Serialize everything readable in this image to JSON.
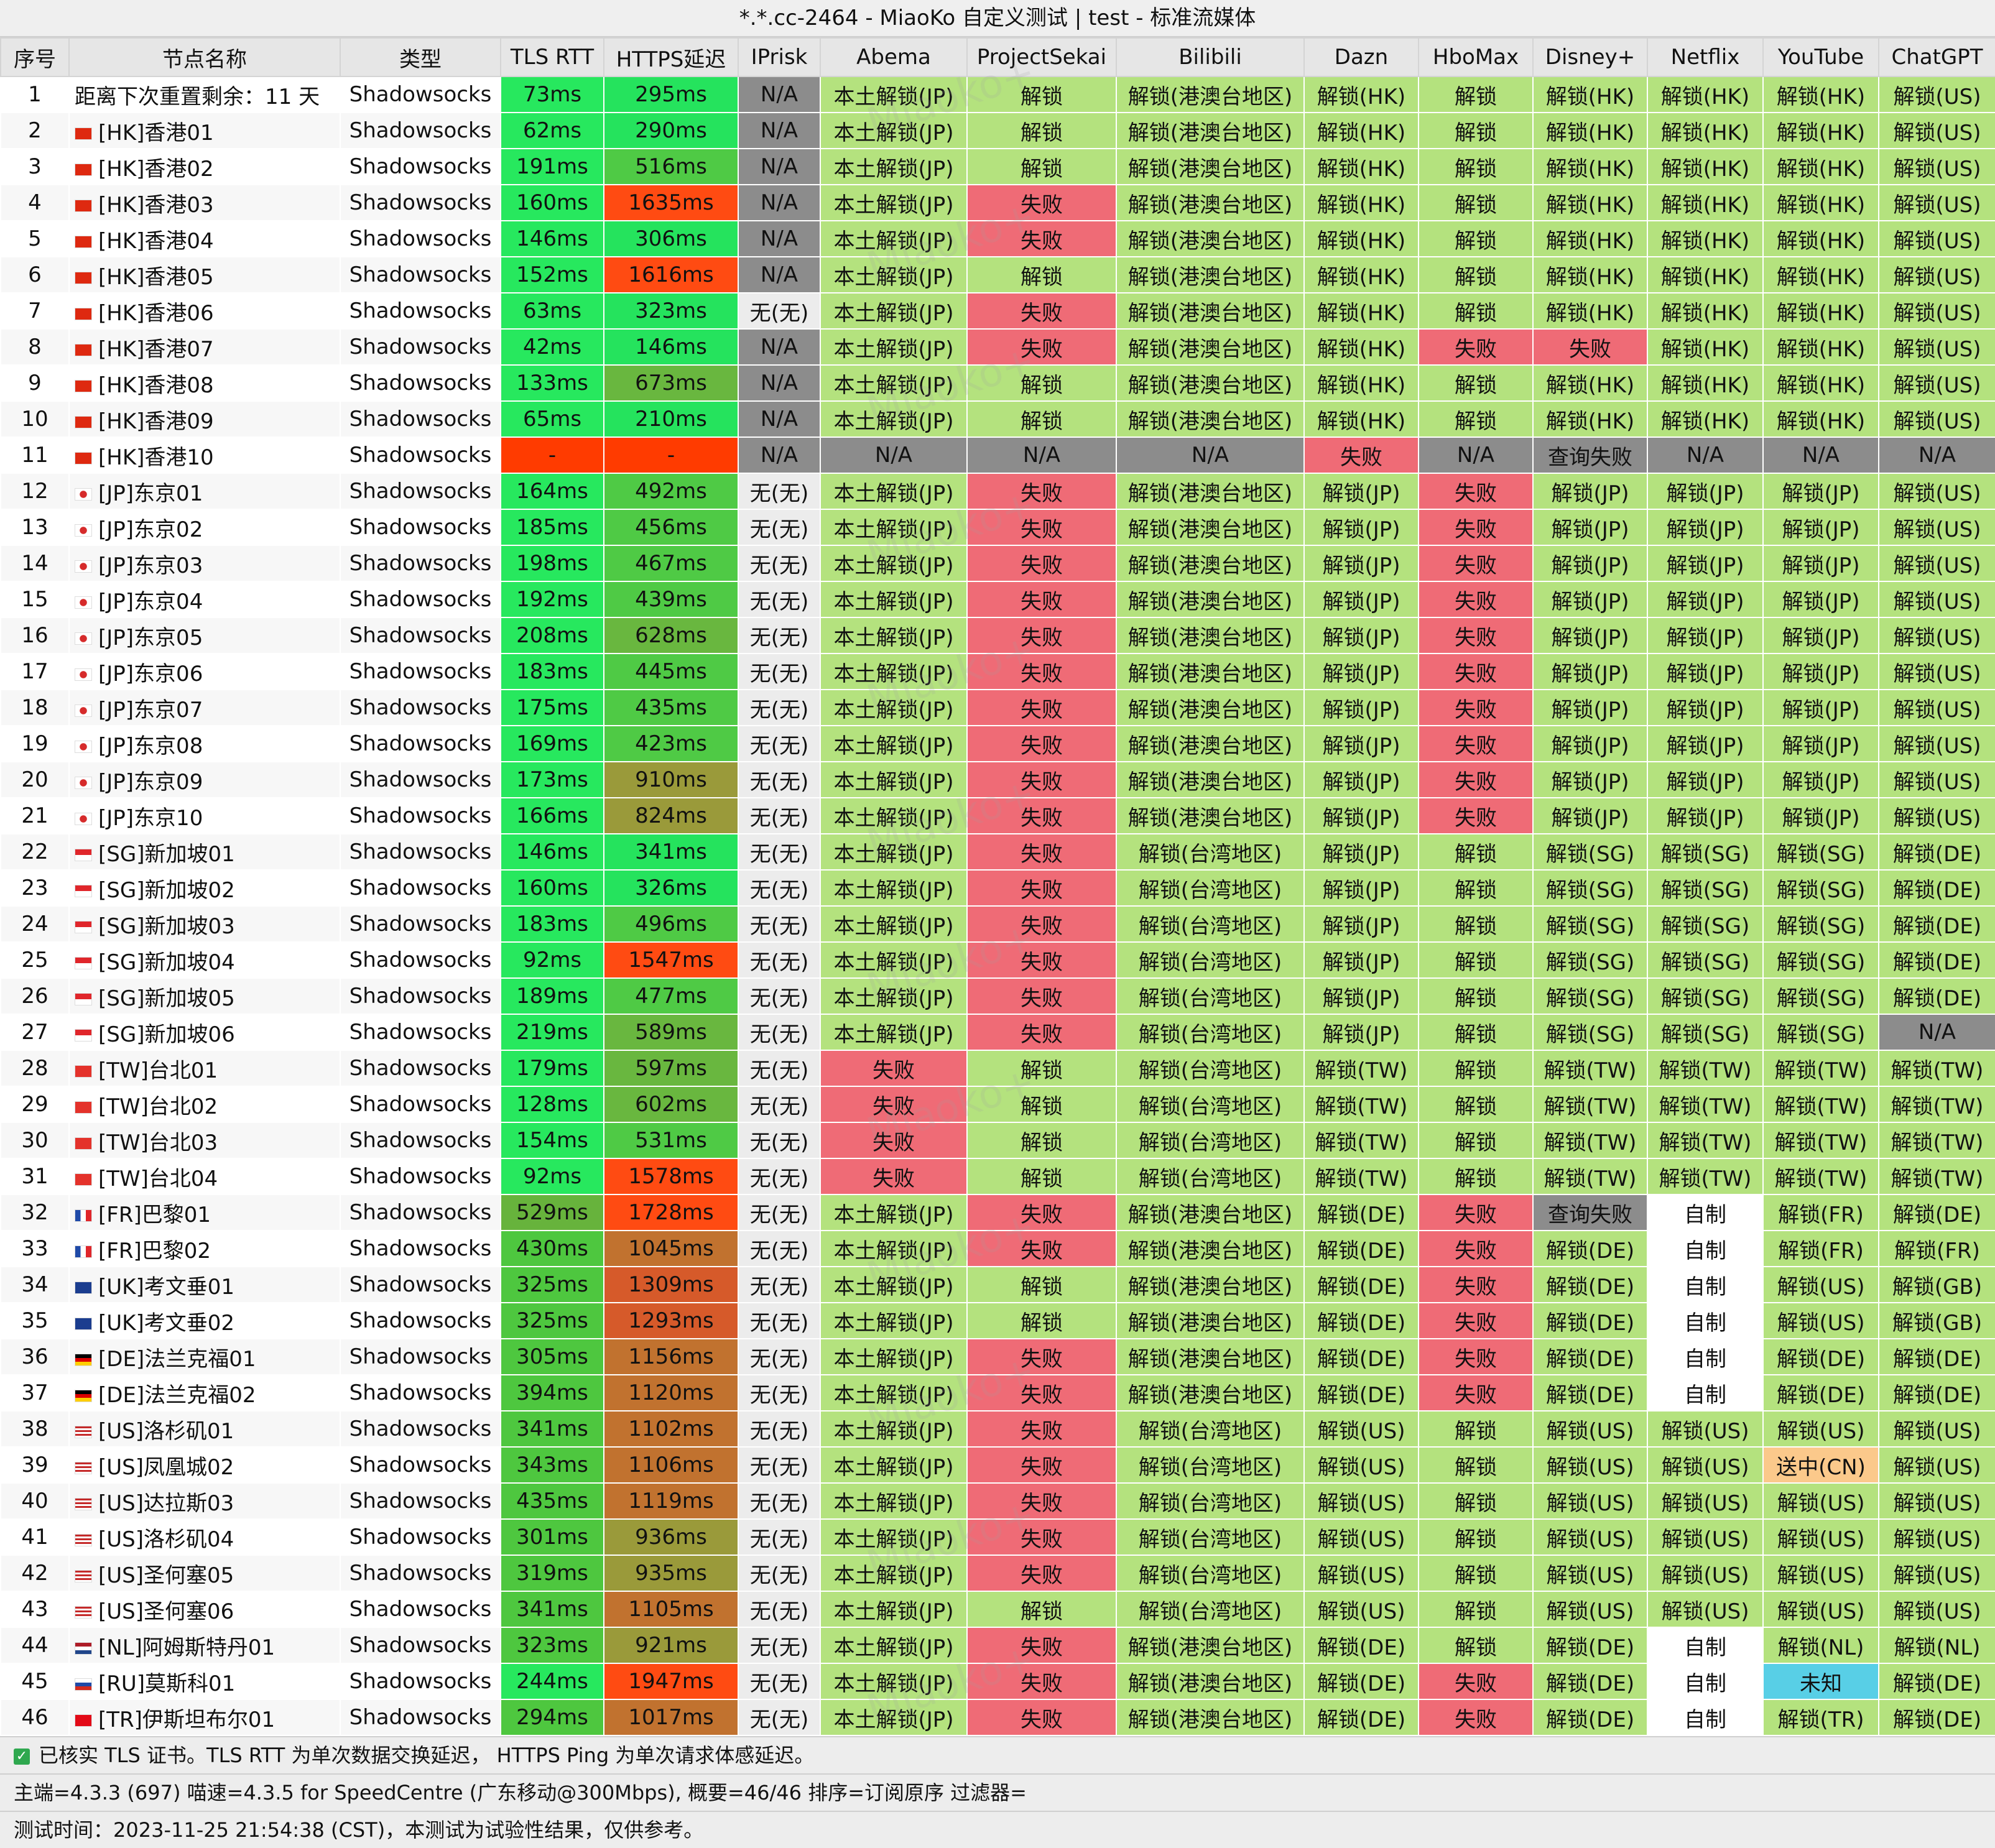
{
  "title": "*.*.cc-2464 - MiaoKo 自定义测试 | test - 标准流媒体",
  "watermark": "Miaoko+",
  "colors": {
    "unlock": "#b4e27e",
    "fail": "#ef6b76",
    "na": "#8c8c8c",
    "none": "#ececec",
    "white": "#ffffff",
    "orange": "#fbc98b",
    "cyan": "#58cfe6",
    "rtt": "#27e85e",
    "rtt_fail": "#ff3b00"
  },
  "headers": [
    "序号",
    "节点名称",
    "类型",
    "TLS RTT",
    "HTTPS延迟",
    "IPrisk",
    "Abema",
    "ProjectSekai",
    "Bilibili",
    "Dazn",
    "HboMax",
    "Disney+",
    "Netflix",
    "YouTube",
    "ChatGPT"
  ],
  "rows": [
    {
      "no": "1",
      "flag": "",
      "name": "距离下次重置剩余：11 天",
      "type": "Shadowsocks",
      "rtt": "73ms",
      "https": "295ms",
      "iprisk": "N/A",
      "abema": "本土解锁(JP)",
      "sekai": "解锁",
      "bili": "解锁(港澳台地区)",
      "dazn": "解锁(HK)",
      "hbo": "解锁",
      "disney": "解锁(HK)",
      "netflix": "解锁(HK)",
      "youtube": "解锁(HK)",
      "chatgpt": "解锁(US)"
    },
    {
      "no": "2",
      "flag": "hk",
      "name": "[HK]香港01",
      "type": "Shadowsocks",
      "rtt": "62ms",
      "https": "290ms",
      "iprisk": "N/A",
      "abema": "本土解锁(JP)",
      "sekai": "解锁",
      "bili": "解锁(港澳台地区)",
      "dazn": "解锁(HK)",
      "hbo": "解锁",
      "disney": "解锁(HK)",
      "netflix": "解锁(HK)",
      "youtube": "解锁(HK)",
      "chatgpt": "解锁(US)"
    },
    {
      "no": "3",
      "flag": "hk",
      "name": "[HK]香港02",
      "type": "Shadowsocks",
      "rtt": "191ms",
      "https": "516ms",
      "iprisk": "N/A",
      "abema": "本土解锁(JP)",
      "sekai": "解锁",
      "bili": "解锁(港澳台地区)",
      "dazn": "解锁(HK)",
      "hbo": "解锁",
      "disney": "解锁(HK)",
      "netflix": "解锁(HK)",
      "youtube": "解锁(HK)",
      "chatgpt": "解锁(US)"
    },
    {
      "no": "4",
      "flag": "hk",
      "name": "[HK]香港03",
      "type": "Shadowsocks",
      "rtt": "160ms",
      "https": "1635ms",
      "iprisk": "N/A",
      "abema": "本土解锁(JP)",
      "sekai": "失败",
      "bili": "解锁(港澳台地区)",
      "dazn": "解锁(HK)",
      "hbo": "解锁",
      "disney": "解锁(HK)",
      "netflix": "解锁(HK)",
      "youtube": "解锁(HK)",
      "chatgpt": "解锁(US)"
    },
    {
      "no": "5",
      "flag": "hk",
      "name": "[HK]香港04",
      "type": "Shadowsocks",
      "rtt": "146ms",
      "https": "306ms",
      "iprisk": "N/A",
      "abema": "本土解锁(JP)",
      "sekai": "失败",
      "bili": "解锁(港澳台地区)",
      "dazn": "解锁(HK)",
      "hbo": "解锁",
      "disney": "解锁(HK)",
      "netflix": "解锁(HK)",
      "youtube": "解锁(HK)",
      "chatgpt": "解锁(US)"
    },
    {
      "no": "6",
      "flag": "hk",
      "name": "[HK]香港05",
      "type": "Shadowsocks",
      "rtt": "152ms",
      "https": "1616ms",
      "iprisk": "N/A",
      "abema": "本土解锁(JP)",
      "sekai": "解锁",
      "bili": "解锁(港澳台地区)",
      "dazn": "解锁(HK)",
      "hbo": "解锁",
      "disney": "解锁(HK)",
      "netflix": "解锁(HK)",
      "youtube": "解锁(HK)",
      "chatgpt": "解锁(US)"
    },
    {
      "no": "7",
      "flag": "hk",
      "name": "[HK]香港06",
      "type": "Shadowsocks",
      "rtt": "63ms",
      "https": "323ms",
      "iprisk": "无(无)",
      "abema": "本土解锁(JP)",
      "sekai": "失败",
      "bili": "解锁(港澳台地区)",
      "dazn": "解锁(HK)",
      "hbo": "解锁",
      "disney": "解锁(HK)",
      "netflix": "解锁(HK)",
      "youtube": "解锁(HK)",
      "chatgpt": "解锁(US)"
    },
    {
      "no": "8",
      "flag": "hk",
      "name": "[HK]香港07",
      "type": "Shadowsocks",
      "rtt": "42ms",
      "https": "146ms",
      "iprisk": "N/A",
      "abema": "本土解锁(JP)",
      "sekai": "失败",
      "bili": "解锁(港澳台地区)",
      "dazn": "解锁(HK)",
      "hbo": "失败",
      "disney": "失败",
      "netflix": "解锁(HK)",
      "youtube": "解锁(HK)",
      "chatgpt": "解锁(US)"
    },
    {
      "no": "9",
      "flag": "hk",
      "name": "[HK]香港08",
      "type": "Shadowsocks",
      "rtt": "133ms",
      "https": "673ms",
      "iprisk": "N/A",
      "abema": "本土解锁(JP)",
      "sekai": "解锁",
      "bili": "解锁(港澳台地区)",
      "dazn": "解锁(HK)",
      "hbo": "解锁",
      "disney": "解锁(HK)",
      "netflix": "解锁(HK)",
      "youtube": "解锁(HK)",
      "chatgpt": "解锁(US)"
    },
    {
      "no": "10",
      "flag": "hk",
      "name": "[HK]香港09",
      "type": "Shadowsocks",
      "rtt": "65ms",
      "https": "210ms",
      "iprisk": "N/A",
      "abema": "本土解锁(JP)",
      "sekai": "解锁",
      "bili": "解锁(港澳台地区)",
      "dazn": "解锁(HK)",
      "hbo": "解锁",
      "disney": "解锁(HK)",
      "netflix": "解锁(HK)",
      "youtube": "解锁(HK)",
      "chatgpt": "解锁(US)"
    },
    {
      "no": "11",
      "flag": "hk",
      "name": "[HK]香港10",
      "type": "Shadowsocks",
      "rtt": "-",
      "https": "-",
      "iprisk": "N/A",
      "abema": "N/A",
      "sekai": "N/A",
      "bili": "N/A",
      "dazn": "失败",
      "hbo": "N/A",
      "disney": "查询失败",
      "netflix": "N/A",
      "youtube": "N/A",
      "chatgpt": "N/A"
    },
    {
      "no": "12",
      "flag": "jp",
      "name": "[JP]东京01",
      "type": "Shadowsocks",
      "rtt": "164ms",
      "https": "492ms",
      "iprisk": "无(无)",
      "abema": "本土解锁(JP)",
      "sekai": "失败",
      "bili": "解锁(港澳台地区)",
      "dazn": "解锁(JP)",
      "hbo": "失败",
      "disney": "解锁(JP)",
      "netflix": "解锁(JP)",
      "youtube": "解锁(JP)",
      "chatgpt": "解锁(US)"
    },
    {
      "no": "13",
      "flag": "jp",
      "name": "[JP]东京02",
      "type": "Shadowsocks",
      "rtt": "185ms",
      "https": "456ms",
      "iprisk": "无(无)",
      "abema": "本土解锁(JP)",
      "sekai": "失败",
      "bili": "解锁(港澳台地区)",
      "dazn": "解锁(JP)",
      "hbo": "失败",
      "disney": "解锁(JP)",
      "netflix": "解锁(JP)",
      "youtube": "解锁(JP)",
      "chatgpt": "解锁(US)"
    },
    {
      "no": "14",
      "flag": "jp",
      "name": "[JP]东京03",
      "type": "Shadowsocks",
      "rtt": "198ms",
      "https": "467ms",
      "iprisk": "无(无)",
      "abema": "本土解锁(JP)",
      "sekai": "失败",
      "bili": "解锁(港澳台地区)",
      "dazn": "解锁(JP)",
      "hbo": "失败",
      "disney": "解锁(JP)",
      "netflix": "解锁(JP)",
      "youtube": "解锁(JP)",
      "chatgpt": "解锁(US)"
    },
    {
      "no": "15",
      "flag": "jp",
      "name": "[JP]东京04",
      "type": "Shadowsocks",
      "rtt": "192ms",
      "https": "439ms",
      "iprisk": "无(无)",
      "abema": "本土解锁(JP)",
      "sekai": "失败",
      "bili": "解锁(港澳台地区)",
      "dazn": "解锁(JP)",
      "hbo": "失败",
      "disney": "解锁(JP)",
      "netflix": "解锁(JP)",
      "youtube": "解锁(JP)",
      "chatgpt": "解锁(US)"
    },
    {
      "no": "16",
      "flag": "jp",
      "name": "[JP]东京05",
      "type": "Shadowsocks",
      "rtt": "208ms",
      "https": "628ms",
      "iprisk": "无(无)",
      "abema": "本土解锁(JP)",
      "sekai": "失败",
      "bili": "解锁(港澳台地区)",
      "dazn": "解锁(JP)",
      "hbo": "失败",
      "disney": "解锁(JP)",
      "netflix": "解锁(JP)",
      "youtube": "解锁(JP)",
      "chatgpt": "解锁(US)"
    },
    {
      "no": "17",
      "flag": "jp",
      "name": "[JP]东京06",
      "type": "Shadowsocks",
      "rtt": "183ms",
      "https": "445ms",
      "iprisk": "无(无)",
      "abema": "本土解锁(JP)",
      "sekai": "失败",
      "bili": "解锁(港澳台地区)",
      "dazn": "解锁(JP)",
      "hbo": "失败",
      "disney": "解锁(JP)",
      "netflix": "解锁(JP)",
      "youtube": "解锁(JP)",
      "chatgpt": "解锁(US)"
    },
    {
      "no": "18",
      "flag": "jp",
      "name": "[JP]东京07",
      "type": "Shadowsocks",
      "rtt": "175ms",
      "https": "435ms",
      "iprisk": "无(无)",
      "abema": "本土解锁(JP)",
      "sekai": "失败",
      "bili": "解锁(港澳台地区)",
      "dazn": "解锁(JP)",
      "hbo": "失败",
      "disney": "解锁(JP)",
      "netflix": "解锁(JP)",
      "youtube": "解锁(JP)",
      "chatgpt": "解锁(US)"
    },
    {
      "no": "19",
      "flag": "jp",
      "name": "[JP]东京08",
      "type": "Shadowsocks",
      "rtt": "169ms",
      "https": "423ms",
      "iprisk": "无(无)",
      "abema": "本土解锁(JP)",
      "sekai": "失败",
      "bili": "解锁(港澳台地区)",
      "dazn": "解锁(JP)",
      "hbo": "失败",
      "disney": "解锁(JP)",
      "netflix": "解锁(JP)",
      "youtube": "解锁(JP)",
      "chatgpt": "解锁(US)"
    },
    {
      "no": "20",
      "flag": "jp",
      "name": "[JP]东京09",
      "type": "Shadowsocks",
      "rtt": "173ms",
      "https": "910ms",
      "iprisk": "无(无)",
      "abema": "本土解锁(JP)",
      "sekai": "失败",
      "bili": "解锁(港澳台地区)",
      "dazn": "解锁(JP)",
      "hbo": "失败",
      "disney": "解锁(JP)",
      "netflix": "解锁(JP)",
      "youtube": "解锁(JP)",
      "chatgpt": "解锁(US)"
    },
    {
      "no": "21",
      "flag": "jp",
      "name": "[JP]东京10",
      "type": "Shadowsocks",
      "rtt": "166ms",
      "https": "824ms",
      "iprisk": "无(无)",
      "abema": "本土解锁(JP)",
      "sekai": "失败",
      "bili": "解锁(港澳台地区)",
      "dazn": "解锁(JP)",
      "hbo": "失败",
      "disney": "解锁(JP)",
      "netflix": "解锁(JP)",
      "youtube": "解锁(JP)",
      "chatgpt": "解锁(US)"
    },
    {
      "no": "22",
      "flag": "sg",
      "name": "[SG]新加坡01",
      "type": "Shadowsocks",
      "rtt": "146ms",
      "https": "341ms",
      "iprisk": "无(无)",
      "abema": "本土解锁(JP)",
      "sekai": "失败",
      "bili": "解锁(台湾地区)",
      "dazn": "解锁(JP)",
      "hbo": "解锁",
      "disney": "解锁(SG)",
      "netflix": "解锁(SG)",
      "youtube": "解锁(SG)",
      "chatgpt": "解锁(DE)"
    },
    {
      "no": "23",
      "flag": "sg",
      "name": "[SG]新加坡02",
      "type": "Shadowsocks",
      "rtt": "160ms",
      "https": "326ms",
      "iprisk": "无(无)",
      "abema": "本土解锁(JP)",
      "sekai": "失败",
      "bili": "解锁(台湾地区)",
      "dazn": "解锁(JP)",
      "hbo": "解锁",
      "disney": "解锁(SG)",
      "netflix": "解锁(SG)",
      "youtube": "解锁(SG)",
      "chatgpt": "解锁(DE)"
    },
    {
      "no": "24",
      "flag": "sg",
      "name": "[SG]新加坡03",
      "type": "Shadowsocks",
      "rtt": "183ms",
      "https": "496ms",
      "iprisk": "无(无)",
      "abema": "本土解锁(JP)",
      "sekai": "失败",
      "bili": "解锁(台湾地区)",
      "dazn": "解锁(JP)",
      "hbo": "解锁",
      "disney": "解锁(SG)",
      "netflix": "解锁(SG)",
      "youtube": "解锁(SG)",
      "chatgpt": "解锁(DE)"
    },
    {
      "no": "25",
      "flag": "sg",
      "name": "[SG]新加坡04",
      "type": "Shadowsocks",
      "rtt": "92ms",
      "https": "1547ms",
      "iprisk": "无(无)",
      "abema": "本土解锁(JP)",
      "sekai": "失败",
      "bili": "解锁(台湾地区)",
      "dazn": "解锁(JP)",
      "hbo": "解锁",
      "disney": "解锁(SG)",
      "netflix": "解锁(SG)",
      "youtube": "解锁(SG)",
      "chatgpt": "解锁(DE)"
    },
    {
      "no": "26",
      "flag": "sg",
      "name": "[SG]新加坡05",
      "type": "Shadowsocks",
      "rtt": "189ms",
      "https": "477ms",
      "iprisk": "无(无)",
      "abema": "本土解锁(JP)",
      "sekai": "失败",
      "bili": "解锁(台湾地区)",
      "dazn": "解锁(JP)",
      "hbo": "解锁",
      "disney": "解锁(SG)",
      "netflix": "解锁(SG)",
      "youtube": "解锁(SG)",
      "chatgpt": "解锁(DE)"
    },
    {
      "no": "27",
      "flag": "sg",
      "name": "[SG]新加坡06",
      "type": "Shadowsocks",
      "rtt": "219ms",
      "https": "589ms",
      "iprisk": "无(无)",
      "abema": "本土解锁(JP)",
      "sekai": "失败",
      "bili": "解锁(台湾地区)",
      "dazn": "解锁(JP)",
      "hbo": "解锁",
      "disney": "解锁(SG)",
      "netflix": "解锁(SG)",
      "youtube": "解锁(SG)",
      "chatgpt": "N/A"
    },
    {
      "no": "28",
      "flag": "tw",
      "name": "[TW]台北01",
      "type": "Shadowsocks",
      "rtt": "179ms",
      "https": "597ms",
      "iprisk": "无(无)",
      "abema": "失败",
      "sekai": "解锁",
      "bili": "解锁(台湾地区)",
      "dazn": "解锁(TW)",
      "hbo": "解锁",
      "disney": "解锁(TW)",
      "netflix": "解锁(TW)",
      "youtube": "解锁(TW)",
      "chatgpt": "解锁(TW)"
    },
    {
      "no": "29",
      "flag": "tw",
      "name": "[TW]台北02",
      "type": "Shadowsocks",
      "rtt": "128ms",
      "https": "602ms",
      "iprisk": "无(无)",
      "abema": "失败",
      "sekai": "解锁",
      "bili": "解锁(台湾地区)",
      "dazn": "解锁(TW)",
      "hbo": "解锁",
      "disney": "解锁(TW)",
      "netflix": "解锁(TW)",
      "youtube": "解锁(TW)",
      "chatgpt": "解锁(TW)"
    },
    {
      "no": "30",
      "flag": "tw",
      "name": "[TW]台北03",
      "type": "Shadowsocks",
      "rtt": "154ms",
      "https": "531ms",
      "iprisk": "无(无)",
      "abema": "失败",
      "sekai": "解锁",
      "bili": "解锁(台湾地区)",
      "dazn": "解锁(TW)",
      "hbo": "解锁",
      "disney": "解锁(TW)",
      "netflix": "解锁(TW)",
      "youtube": "解锁(TW)",
      "chatgpt": "解锁(TW)"
    },
    {
      "no": "31",
      "flag": "tw",
      "name": "[TW]台北04",
      "type": "Shadowsocks",
      "rtt": "92ms",
      "https": "1578ms",
      "iprisk": "无(无)",
      "abema": "失败",
      "sekai": "解锁",
      "bili": "解锁(台湾地区)",
      "dazn": "解锁(TW)",
      "hbo": "解锁",
      "disney": "解锁(TW)",
      "netflix": "解锁(TW)",
      "youtube": "解锁(TW)",
      "chatgpt": "解锁(TW)"
    },
    {
      "no": "32",
      "flag": "fr",
      "name": "[FR]巴黎01",
      "type": "Shadowsocks",
      "rtt": "529ms",
      "https": "1728ms",
      "iprisk": "无(无)",
      "abema": "本土解锁(JP)",
      "sekai": "失败",
      "bili": "解锁(港澳台地区)",
      "dazn": "解锁(DE)",
      "hbo": "失败",
      "disney": "查询失败",
      "netflix": "自制",
      "youtube": "解锁(FR)",
      "chatgpt": "解锁(DE)"
    },
    {
      "no": "33",
      "flag": "fr",
      "name": "[FR]巴黎02",
      "type": "Shadowsocks",
      "rtt": "430ms",
      "https": "1045ms",
      "iprisk": "无(无)",
      "abema": "本土解锁(JP)",
      "sekai": "失败",
      "bili": "解锁(港澳台地区)",
      "dazn": "解锁(DE)",
      "hbo": "失败",
      "disney": "解锁(DE)",
      "netflix": "自制",
      "youtube": "解锁(FR)",
      "chatgpt": "解锁(FR)"
    },
    {
      "no": "34",
      "flag": "uk",
      "name": "[UK]考文垂01",
      "type": "Shadowsocks",
      "rtt": "325ms",
      "https": "1309ms",
      "iprisk": "无(无)",
      "abema": "本土解锁(JP)",
      "sekai": "解锁",
      "bili": "解锁(港澳台地区)",
      "dazn": "解锁(DE)",
      "hbo": "失败",
      "disney": "解锁(DE)",
      "netflix": "自制",
      "youtube": "解锁(US)",
      "chatgpt": "解锁(GB)"
    },
    {
      "no": "35",
      "flag": "uk",
      "name": "[UK]考文垂02",
      "type": "Shadowsocks",
      "rtt": "325ms",
      "https": "1293ms",
      "iprisk": "无(无)",
      "abema": "本土解锁(JP)",
      "sekai": "解锁",
      "bili": "解锁(港澳台地区)",
      "dazn": "解锁(DE)",
      "hbo": "失败",
      "disney": "解锁(DE)",
      "netflix": "自制",
      "youtube": "解锁(US)",
      "chatgpt": "解锁(GB)"
    },
    {
      "no": "36",
      "flag": "de",
      "name": "[DE]法兰克福01",
      "type": "Shadowsocks",
      "rtt": "305ms",
      "https": "1156ms",
      "iprisk": "无(无)",
      "abema": "本土解锁(JP)",
      "sekai": "失败",
      "bili": "解锁(港澳台地区)",
      "dazn": "解锁(DE)",
      "hbo": "失败",
      "disney": "解锁(DE)",
      "netflix": "自制",
      "youtube": "解锁(DE)",
      "chatgpt": "解锁(DE)"
    },
    {
      "no": "37",
      "flag": "de",
      "name": "[DE]法兰克福02",
      "type": "Shadowsocks",
      "rtt": "394ms",
      "https": "1120ms",
      "iprisk": "无(无)",
      "abema": "本土解锁(JP)",
      "sekai": "失败",
      "bili": "解锁(港澳台地区)",
      "dazn": "解锁(DE)",
      "hbo": "失败",
      "disney": "解锁(DE)",
      "netflix": "自制",
      "youtube": "解锁(DE)",
      "chatgpt": "解锁(DE)"
    },
    {
      "no": "38",
      "flag": "us",
      "name": "[US]洛杉矶01",
      "type": "Shadowsocks",
      "rtt": "341ms",
      "https": "1102ms",
      "iprisk": "无(无)",
      "abema": "本土解锁(JP)",
      "sekai": "失败",
      "bili": "解锁(台湾地区)",
      "dazn": "解锁(US)",
      "hbo": "解锁",
      "disney": "解锁(US)",
      "netflix": "解锁(US)",
      "youtube": "解锁(US)",
      "chatgpt": "解锁(US)"
    },
    {
      "no": "39",
      "flag": "us",
      "name": "[US]凤凰城02",
      "type": "Shadowsocks",
      "rtt": "343ms",
      "https": "1106ms",
      "iprisk": "无(无)",
      "abema": "本土解锁(JP)",
      "sekai": "失败",
      "bili": "解锁(台湾地区)",
      "dazn": "解锁(US)",
      "hbo": "解锁",
      "disney": "解锁(US)",
      "netflix": "解锁(US)",
      "youtube": "送中(CN)",
      "chatgpt": "解锁(US)"
    },
    {
      "no": "40",
      "flag": "us",
      "name": "[US]达拉斯03",
      "type": "Shadowsocks",
      "rtt": "435ms",
      "https": "1119ms",
      "iprisk": "无(无)",
      "abema": "本土解锁(JP)",
      "sekai": "失败",
      "bili": "解锁(台湾地区)",
      "dazn": "解锁(US)",
      "hbo": "解锁",
      "disney": "解锁(US)",
      "netflix": "解锁(US)",
      "youtube": "解锁(US)",
      "chatgpt": "解锁(US)"
    },
    {
      "no": "41",
      "flag": "us",
      "name": "[US]洛杉矶04",
      "type": "Shadowsocks",
      "rtt": "301ms",
      "https": "936ms",
      "iprisk": "无(无)",
      "abema": "本土解锁(JP)",
      "sekai": "失败",
      "bili": "解锁(台湾地区)",
      "dazn": "解锁(US)",
      "hbo": "解锁",
      "disney": "解锁(US)",
      "netflix": "解锁(US)",
      "youtube": "解锁(US)",
      "chatgpt": "解锁(US)"
    },
    {
      "no": "42",
      "flag": "us",
      "name": "[US]圣何塞05",
      "type": "Shadowsocks",
      "rtt": "319ms",
      "https": "935ms",
      "iprisk": "无(无)",
      "abema": "本土解锁(JP)",
      "sekai": "失败",
      "bili": "解锁(台湾地区)",
      "dazn": "解锁(US)",
      "hbo": "解锁",
      "disney": "解锁(US)",
      "netflix": "解锁(US)",
      "youtube": "解锁(US)",
      "chatgpt": "解锁(US)"
    },
    {
      "no": "43",
      "flag": "us",
      "name": "[US]圣何塞06",
      "type": "Shadowsocks",
      "rtt": "341ms",
      "https": "1105ms",
      "iprisk": "无(无)",
      "abema": "本土解锁(JP)",
      "sekai": "解锁",
      "bili": "解锁(台湾地区)",
      "dazn": "解锁(US)",
      "hbo": "解锁",
      "disney": "解锁(US)",
      "netflix": "解锁(US)",
      "youtube": "解锁(US)",
      "chatgpt": "解锁(US)"
    },
    {
      "no": "44",
      "flag": "nl",
      "name": "[NL]阿姆斯特丹01",
      "type": "Shadowsocks",
      "rtt": "323ms",
      "https": "921ms",
      "iprisk": "无(无)",
      "abema": "本土解锁(JP)",
      "sekai": "失败",
      "bili": "解锁(港澳台地区)",
      "dazn": "解锁(DE)",
      "hbo": "解锁",
      "disney": "解锁(DE)",
      "netflix": "自制",
      "youtube": "解锁(NL)",
      "chatgpt": "解锁(NL)"
    },
    {
      "no": "45",
      "flag": "ru",
      "name": "[RU]莫斯科01",
      "type": "Shadowsocks",
      "rtt": "244ms",
      "https": "1947ms",
      "iprisk": "无(无)",
      "abema": "本土解锁(JP)",
      "sekai": "失败",
      "bili": "解锁(港澳台地区)",
      "dazn": "解锁(DE)",
      "hbo": "失败",
      "disney": "解锁(DE)",
      "netflix": "自制",
      "youtube": "未知",
      "chatgpt": "解锁(DE)"
    },
    {
      "no": "46",
      "flag": "tr",
      "name": "[TR]伊斯坦布尔01",
      "type": "Shadowsocks",
      "rtt": "294ms",
      "https": "1017ms",
      "iprisk": "无(无)",
      "abema": "本土解锁(JP)",
      "sekai": "失败",
      "bili": "解锁(港澳台地区)",
      "dazn": "解锁(DE)",
      "hbo": "失败",
      "disney": "解锁(DE)",
      "netflix": "自制",
      "youtube": "解锁(TR)",
      "chatgpt": "解锁(DE)"
    }
  ],
  "footer": {
    "line1": "已核实 TLS 证书。TLS RTT 为单次数据交换延迟， HTTPS Ping 为单次请求体感延迟。",
    "line2": "主端=4.3.3 (697) 喵速=4.3.5 for SpeedCentre (广东移动@300Mbps), 概要=46/46 排序=订阅原序 过滤器=",
    "line3": "测试时间：2023-11-25 21:54:38 (CST)，本测试为试验性结果，仅供参考。"
  }
}
